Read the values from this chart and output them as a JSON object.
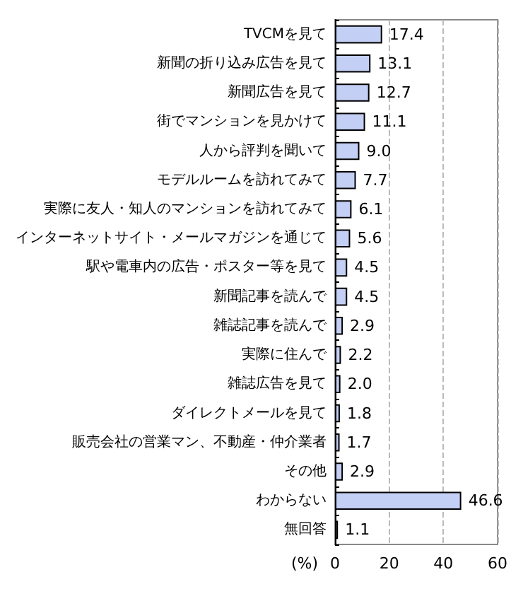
{
  "chart_data": {
    "type": "bar",
    "orientation": "horizontal",
    "xlabel": "(%)",
    "categories": [
      "TVCMを見て",
      "新聞の折り込み広告を見て",
      "新聞広告を見て",
      "街でマンションを見かけて",
      "人から評判を聞いて",
      "モデルルームを訪れてみて",
      "実際に友人・知人のマンションを訪れてみて",
      "インターネットサイト・メールマガジンを通じて",
      "駅や電車内の広告・ポスター等を見て",
      "新聞記事を読んで",
      "雑誌記事を読んで",
      "実際に住んで",
      "雑誌広告を見て",
      "ダイレクトメールを見て",
      "販売会社の営業マン、不動産・仲介業者",
      "その他",
      "わからない",
      "無回答"
    ],
    "values": [
      17.4,
      13.1,
      12.7,
      11.1,
      9.0,
      7.7,
      6.1,
      5.6,
      4.5,
      4.5,
      2.9,
      2.2,
      2.0,
      1.8,
      1.7,
      2.9,
      46.6,
      1.1
    ],
    "value_labels": [
      "17.4",
      "13.1",
      "12.7",
      "11.1",
      "9.0",
      "7.7",
      "6.1",
      "5.6",
      "4.5",
      "4.5",
      "2.9",
      "2.2",
      "2.0",
      "1.8",
      "1.7",
      "2.9",
      "46.6",
      "1.1"
    ],
    "color": "#c4cff5",
    "xlim": [
      0,
      60
    ],
    "xticks": [
      0,
      20,
      40,
      60
    ],
    "grid": "x"
  }
}
